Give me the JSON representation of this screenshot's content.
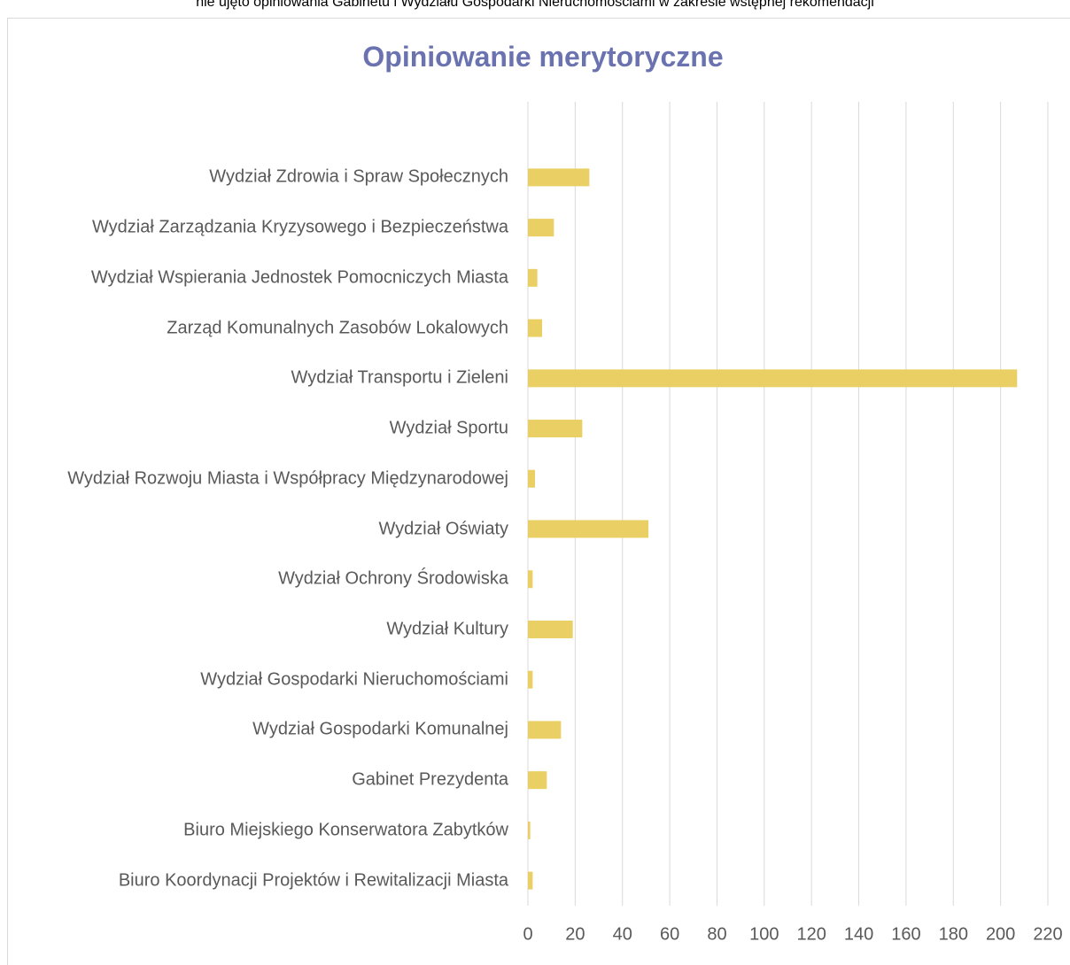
{
  "chart_data": {
    "type": "barh",
    "annotation": "nie ujęto opiniowania Gabinetu i Wydziału Gospodarki Nieruchomościami w zakresie wstępnej rekomendacji",
    "title": "Opiniowanie merytoryczne",
    "categories": [
      "Wydział Zdrowia i Spraw Społecznych",
      "Wydział Zarządzania Kryzysowego i Bezpieczeństwa",
      "Wydział Wspierania Jednostek Pomocniczych Miasta",
      "Zarząd Komunalnych Zasobów Lokalowych",
      "Wydział Transportu i Zieleni",
      "Wydział Sportu",
      "Wydział Rozwoju Miasta i Współpracy Międzynarodowej",
      "Wydział Oświaty",
      "Wydział Ochrony Środowiska",
      "Wydział Kultury",
      "Wydział Gospodarki Nieruchomościami",
      "Wydział Gospodarki Komunalnej",
      "Gabinet Prezydenta",
      "Biuro Miejskiego Konserwatora Zabytków",
      "Biuro Koordynacji Projektów i Rewitalizacji Miasta"
    ],
    "values": [
      26,
      11,
      4,
      6,
      207,
      23,
      3,
      51,
      2,
      19,
      2,
      14,
      8,
      1,
      2
    ],
    "color": "#ead064",
    "xlim": [
      0,
      220
    ],
    "xticks": [
      0,
      20,
      40,
      60,
      80,
      100,
      120,
      140,
      160,
      180,
      200,
      220
    ],
    "grid": true
  }
}
